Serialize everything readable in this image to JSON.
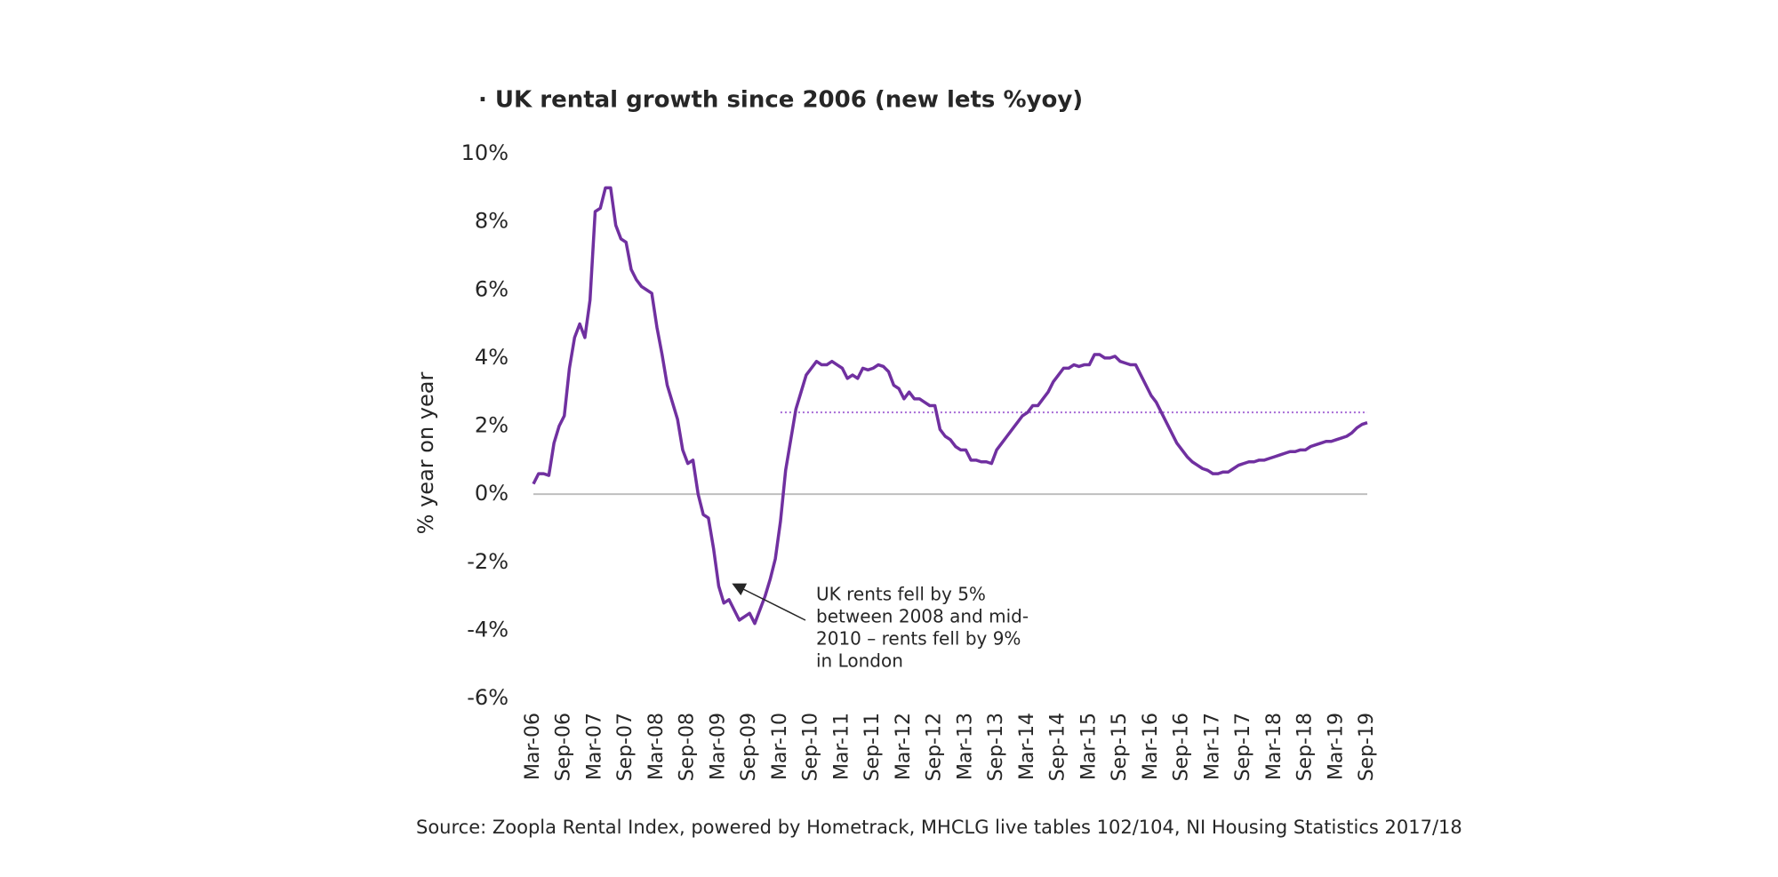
{
  "chart_data": {
    "type": "line",
    "title": "· UK rental growth since 2006 (new lets %yoy)",
    "y_label": "% year on year",
    "source": "Source: Zoopla Rental Index, powered by Hometrack, MHCLG live tables 102/104, NI Housing Statistics 2017/18",
    "annotation": [
      "UK rents fell by 5%",
      "between 2008 and mid-",
      "2010 – rents fell by 9%",
      "in London"
    ],
    "ylim": [
      -6,
      10
    ],
    "yticks": [
      {
        "value": 10,
        "label": "10%"
      },
      {
        "value": 8,
        "label": "8%"
      },
      {
        "value": 6,
        "label": "6%"
      },
      {
        "value": 4,
        "label": "4%"
      },
      {
        "value": 2,
        "label": "2%"
      },
      {
        "value": 0,
        "label": "0%"
      },
      {
        "value": -2,
        "label": "-2%"
      },
      {
        "value": -4,
        "label": "-4%"
      },
      {
        "value": -6,
        "label": "-6%"
      }
    ],
    "reference_line": {
      "value": 2.4,
      "from": "Mar-10",
      "color": "#a66ad6"
    },
    "categories": [
      "Mar-06",
      null,
      null,
      null,
      null,
      null,
      "Sep-06",
      null,
      null,
      null,
      null,
      null,
      "Mar-07",
      null,
      null,
      null,
      null,
      null,
      "Sep-07",
      null,
      null,
      null,
      null,
      null,
      "Mar-08",
      null,
      null,
      null,
      null,
      null,
      "Sep-08",
      null,
      null,
      null,
      null,
      null,
      "Mar-09",
      null,
      null,
      null,
      null,
      null,
      "Sep-09",
      null,
      null,
      null,
      null,
      null,
      "Mar-10",
      null,
      null,
      null,
      null,
      null,
      "Sep-10",
      null,
      null,
      null,
      null,
      null,
      "Mar-11",
      null,
      null,
      null,
      null,
      null,
      "Sep-11",
      null,
      null,
      null,
      null,
      null,
      "Mar-12",
      null,
      null,
      null,
      null,
      null,
      "Sep-12",
      null,
      null,
      null,
      null,
      null,
      "Mar-13",
      null,
      null,
      null,
      null,
      null,
      "Sep-13",
      null,
      null,
      null,
      null,
      null,
      "Mar-14",
      null,
      null,
      null,
      null,
      null,
      "Sep-14",
      null,
      null,
      null,
      null,
      null,
      "Mar-15",
      null,
      null,
      null,
      null,
      null,
      "Sep-15",
      null,
      null,
      null,
      null,
      null,
      "Mar-16",
      null,
      null,
      null,
      null,
      null,
      "Sep-16",
      null,
      null,
      null,
      null,
      null,
      "Mar-17",
      null,
      null,
      null,
      null,
      null,
      "Sep-17",
      null,
      null,
      null,
      null,
      null,
      "Mar-18",
      null,
      null,
      null,
      null,
      null,
      "Sep-18",
      null,
      null,
      null,
      null,
      null,
      "Mar-19",
      null,
      null,
      null,
      null,
      null,
      "Sep-19"
    ],
    "series": [
      {
        "name": "UK rental growth",
        "color": "#7030a0",
        "values": [
          0.3,
          0.6,
          0.6,
          0.55,
          1.5,
          2.0,
          2.3,
          3.7,
          4.6,
          5.0,
          4.6,
          5.7,
          8.3,
          8.4,
          9.0,
          9.0,
          7.9,
          7.5,
          7.4,
          6.6,
          6.3,
          6.1,
          6.0,
          5.9,
          4.9,
          4.1,
          3.2,
          2.7,
          2.2,
          1.3,
          0.9,
          1.0,
          0.0,
          -0.6,
          -0.7,
          -1.6,
          -2.7,
          -3.2,
          -3.1,
          -3.4,
          -3.7,
          -3.6,
          -3.5,
          -3.8,
          -3.4,
          -3.0,
          -2.5,
          -1.9,
          -0.8,
          0.7,
          1.6,
          2.5,
          3.0,
          3.5,
          3.7,
          3.9,
          3.8,
          3.8,
          3.9,
          3.8,
          3.7,
          3.4,
          3.5,
          3.4,
          3.7,
          3.65,
          3.7,
          3.8,
          3.75,
          3.6,
          3.2,
          3.1,
          2.8,
          3.0,
          2.8,
          2.8,
          2.7,
          2.6,
          2.6,
          1.9,
          1.7,
          1.6,
          1.4,
          1.3,
          1.3,
          1.0,
          1.0,
          0.95,
          0.95,
          0.9,
          1.3,
          1.5,
          1.7,
          1.9,
          2.1,
          2.3,
          2.4,
          2.6,
          2.6,
          2.8,
          3.0,
          3.3,
          3.5,
          3.7,
          3.7,
          3.8,
          3.75,
          3.8,
          3.8,
          4.1,
          4.1,
          4.0,
          4.0,
          4.05,
          3.9,
          3.85,
          3.8,
          3.8,
          3.5,
          3.2,
          2.9,
          2.7,
          2.4,
          2.1,
          1.8,
          1.5,
          1.3,
          1.1,
          0.95,
          0.85,
          0.75,
          0.7,
          0.6,
          0.6,
          0.65,
          0.65,
          0.75,
          0.85,
          0.9,
          0.95,
          0.95,
          1.0,
          1.0,
          1.05,
          1.1,
          1.15,
          1.2,
          1.25,
          1.25,
          1.3,
          1.3,
          1.4,
          1.45,
          1.5,
          1.55,
          1.55,
          1.6,
          1.65,
          1.7,
          1.8,
          1.95,
          2.05,
          2.1
        ]
      }
    ]
  }
}
